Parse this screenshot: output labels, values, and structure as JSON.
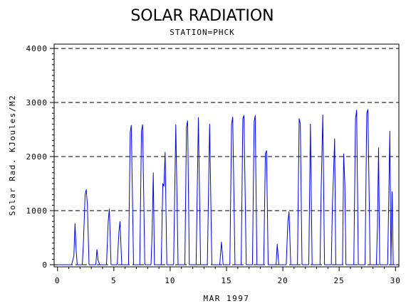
{
  "header": {
    "title": "SOLAR RADIATION",
    "subtitle": "STATION=PHCK"
  },
  "chart_data": {
    "type": "line",
    "title": "SOLAR RADIATION",
    "subtitle": "STATION=PHCK",
    "xlabel": "MAR 1997",
    "ylabel": "Solar Rad. KJoules/M2",
    "xlim": [
      -0.3,
      30.3
    ],
    "ylim": [
      -40,
      4080
    ],
    "x_ticks": [
      0,
      5,
      10,
      15,
      20,
      25,
      30
    ],
    "y_ticks": [
      0,
      1000,
      2000,
      3000,
      4000
    ],
    "grid": "horizontal-dashed",
    "line_color": "#0000ff",
    "series": [
      {
        "values": [
          [
            0,
            0
          ],
          [
            1.25,
            0
          ],
          [
            1.35,
            80
          ],
          [
            1.45,
            160
          ],
          [
            1.55,
            760
          ],
          [
            1.65,
            300
          ],
          [
            1.75,
            0
          ],
          [
            2.2,
            0
          ],
          [
            2.3,
            400
          ],
          [
            2.45,
            1300
          ],
          [
            2.55,
            1390
          ],
          [
            2.65,
            1100
          ],
          [
            2.8,
            0
          ],
          [
            3.4,
            0
          ],
          [
            3.5,
            280
          ],
          [
            3.6,
            80
          ],
          [
            3.75,
            0
          ],
          [
            4.35,
            0
          ],
          [
            4.5,
            800
          ],
          [
            4.6,
            1030
          ],
          [
            4.75,
            0
          ],
          [
            5.3,
            0
          ],
          [
            5.45,
            600
          ],
          [
            5.55,
            800
          ],
          [
            5.7,
            0
          ],
          [
            6.3,
            0
          ],
          [
            6.45,
            2450
          ],
          [
            6.55,
            2580
          ],
          [
            6.75,
            0
          ],
          [
            7.3,
            0
          ],
          [
            7.45,
            2470
          ],
          [
            7.55,
            2590
          ],
          [
            7.75,
            0
          ],
          [
            8.3,
            0
          ],
          [
            8.4,
            600
          ],
          [
            8.5,
            1700
          ],
          [
            8.6,
            0
          ],
          [
            9.2,
            0
          ],
          [
            9.35,
            1500
          ],
          [
            9.45,
            1450
          ],
          [
            9.55,
            2080
          ],
          [
            9.7,
            0
          ],
          [
            10.3,
            0
          ],
          [
            10.5,
            2590
          ],
          [
            10.7,
            0
          ],
          [
            11.3,
            0
          ],
          [
            11.45,
            2550
          ],
          [
            11.55,
            2660
          ],
          [
            11.7,
            0
          ],
          [
            12.3,
            0
          ],
          [
            12.5,
            2720
          ],
          [
            12.7,
            0
          ],
          [
            13.3,
            0
          ],
          [
            13.5,
            2600
          ],
          [
            13.7,
            0
          ],
          [
            14.4,
            0
          ],
          [
            14.55,
            420
          ],
          [
            14.7,
            0
          ],
          [
            15.3,
            0
          ],
          [
            15.45,
            2600
          ],
          [
            15.55,
            2730
          ],
          [
            15.75,
            0
          ],
          [
            16.3,
            0
          ],
          [
            16.45,
            2700
          ],
          [
            16.55,
            2760
          ],
          [
            16.75,
            0
          ],
          [
            17.3,
            0
          ],
          [
            17.45,
            2650
          ],
          [
            17.55,
            2760
          ],
          [
            17.7,
            0
          ],
          [
            18.3,
            0
          ],
          [
            18.45,
            2050
          ],
          [
            18.55,
            2110
          ],
          [
            18.7,
            0
          ],
          [
            19.4,
            0
          ],
          [
            19.5,
            380
          ],
          [
            19.65,
            0
          ],
          [
            20.3,
            0
          ],
          [
            20.45,
            800
          ],
          [
            20.55,
            980
          ],
          [
            20.7,
            0
          ],
          [
            21.3,
            0
          ],
          [
            21.45,
            2700
          ],
          [
            21.55,
            2610
          ],
          [
            21.7,
            0
          ],
          [
            22.3,
            0
          ],
          [
            22.45,
            2600
          ],
          [
            22.6,
            0
          ],
          [
            23.3,
            0
          ],
          [
            23.4,
            1400
          ],
          [
            23.55,
            2770
          ],
          [
            23.7,
            0
          ],
          [
            24.3,
            0
          ],
          [
            24.4,
            1100
          ],
          [
            24.5,
            1700
          ],
          [
            24.6,
            2330
          ],
          [
            24.7,
            0
          ],
          [
            25.3,
            0
          ],
          [
            25.4,
            2050
          ],
          [
            25.5,
            1500
          ],
          [
            25.6,
            0
          ],
          [
            26.3,
            0
          ],
          [
            26.45,
            2700
          ],
          [
            26.55,
            2860
          ],
          [
            26.7,
            0
          ],
          [
            27.3,
            0
          ],
          [
            27.45,
            2800
          ],
          [
            27.55,
            2870
          ],
          [
            27.75,
            0
          ],
          [
            28.3,
            0
          ],
          [
            28.4,
            700
          ],
          [
            28.5,
            2160
          ],
          [
            28.6,
            0
          ],
          [
            29.3,
            0
          ],
          [
            29.4,
            1200
          ],
          [
            29.5,
            2470
          ],
          [
            29.6,
            0
          ],
          [
            29.7,
            1350
          ],
          [
            29.8,
            0
          ],
          [
            30,
            0
          ]
        ]
      }
    ]
  }
}
